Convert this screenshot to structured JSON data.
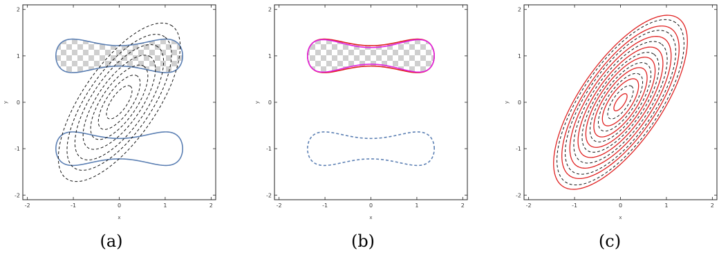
{
  "colors": {
    "blue": "#5b7fb3",
    "red": "#e02020",
    "magenta": "#e020e0",
    "contour": "#111111",
    "checker_light": "#ffffff",
    "checker_dark": "#cccccc"
  },
  "chart_data": [
    {
      "type": "line",
      "caption": "(a)",
      "xlabel": "x",
      "ylabel": "y",
      "xlim": [
        -2.1,
        2.1
      ],
      "ylim": [
        -2.1,
        2.1
      ],
      "xticks": [
        "-2",
        "-1",
        "0",
        "1",
        "2"
      ],
      "yticks": [
        "-2",
        "-1",
        "0",
        "1",
        "2"
      ],
      "grid": false,
      "series": [
        {
          "kind": "dumbbell",
          "style": "solid",
          "color": "blue",
          "fill": "checker",
          "center": [
            0,
            1.0
          ]
        },
        {
          "kind": "dumbbell",
          "style": "solid",
          "color": "blue",
          "center": [
            0,
            -1.0
          ]
        },
        {
          "kind": "ellipse-contours",
          "style": "dashed",
          "color": "contour",
          "levels": [
            0.3,
            0.8,
            1.5,
            2.4,
            3.6,
            5.0,
            6.8
          ]
        }
      ]
    },
    {
      "type": "line",
      "caption": "(b)",
      "xlabel": "x",
      "ylabel": "y",
      "xlim": [
        -2.1,
        2.1
      ],
      "ylim": [
        -2.1,
        2.1
      ],
      "xticks": [
        "-2",
        "-1",
        "0",
        "1",
        "2"
      ],
      "yticks": [
        "-2",
        "-1",
        "0",
        "1",
        "2"
      ],
      "grid": false,
      "series": [
        {
          "kind": "dumbbell",
          "style": "solid",
          "color": "red",
          "fill": "checker",
          "center": [
            0,
            1.0
          ]
        },
        {
          "kind": "dumbbell",
          "style": "solid",
          "color": "magenta",
          "center": [
            0,
            1.0
          ],
          "variant": "inner"
        },
        {
          "kind": "dumbbell",
          "style": "dashed",
          "color": "blue",
          "center": [
            0,
            -1.0
          ]
        }
      ]
    },
    {
      "type": "line",
      "caption": "(c)",
      "xlabel": "x",
      "ylabel": "y",
      "xlim": [
        -2.1,
        2.1
      ],
      "ylim": [
        -2.1,
        2.1
      ],
      "xticks": [
        "-2",
        "-1",
        "0",
        "1",
        "2"
      ],
      "yticks": [
        "-2",
        "-1",
        "0",
        "1",
        "2"
      ],
      "grid": false,
      "series": [
        {
          "kind": "ellipse-contours",
          "style": "dashed",
          "color": "contour",
          "levels": [
            0.3,
            0.9,
            1.7,
            2.7,
            4.0,
            5.6,
            7.4
          ]
        },
        {
          "kind": "ellipse-contours",
          "style": "solid",
          "color": "red",
          "levels": [
            0.08,
            0.6,
            1.3,
            2.2,
            3.3,
            4.7,
            6.3,
            8.2
          ]
        }
      ]
    }
  ]
}
